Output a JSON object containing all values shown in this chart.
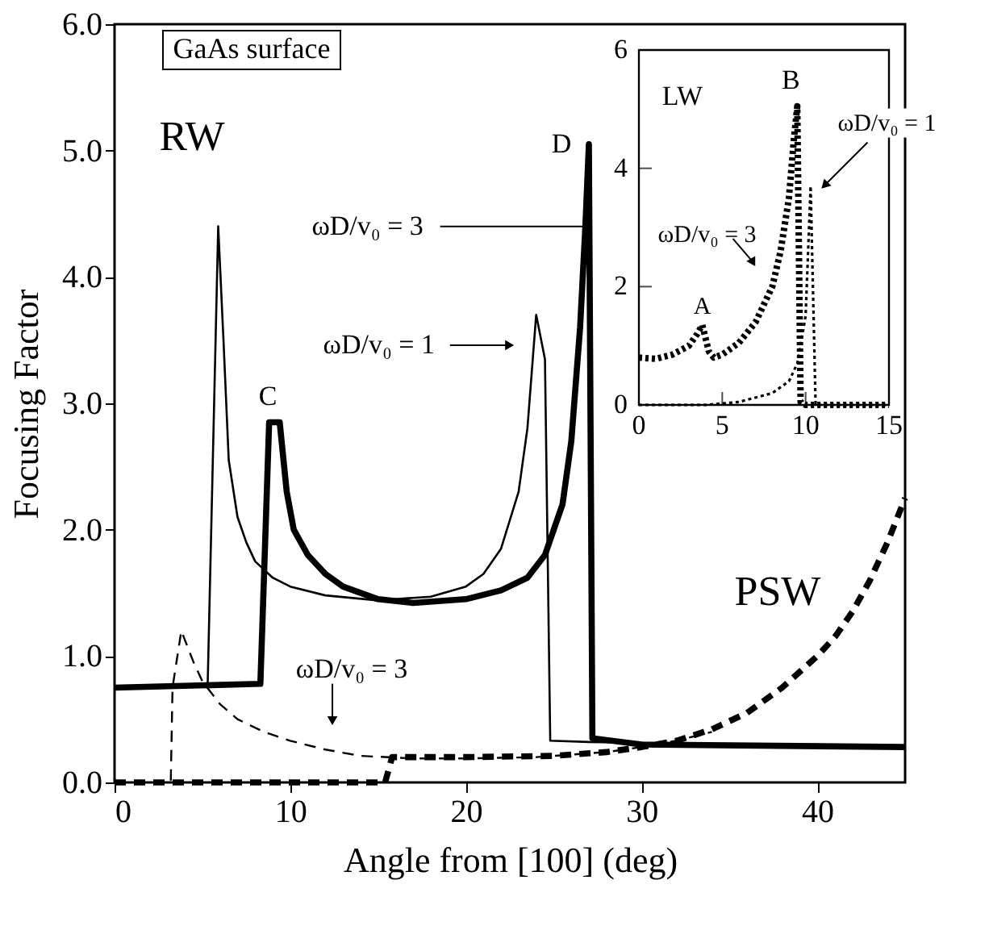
{
  "chart_data": [
    {
      "type": "line",
      "xlabel": "Angle from [100] (deg)",
      "ylabel": "Focusing Factor",
      "xlim": [
        0,
        45
      ],
      "ylim": [
        0,
        6
      ],
      "xticks": [
        0,
        10,
        20,
        30,
        40
      ],
      "yticks": [
        {
          "value": 0,
          "label": "0.0"
        },
        {
          "value": 1,
          "label": "1.0"
        },
        {
          "value": 2,
          "label": "2.0"
        },
        {
          "value": 3,
          "label": "3.0"
        },
        {
          "value": 4,
          "label": "4.0"
        },
        {
          "value": 5,
          "label": "5.0"
        },
        {
          "value": 6,
          "label": "6.0"
        }
      ],
      "series": [
        {
          "color": "#000000",
          "line_style": "solid",
          "x": [
            0,
            5.3,
            5.9,
            6.2,
            6.5,
            7,
            7.5,
            8,
            9,
            10,
            12,
            15,
            18,
            20,
            21,
            22,
            23,
            23.5,
            24,
            24.5,
            24.8,
            27,
            35,
            45
          ],
          "values": [
            0.75,
            0.77,
            4.4,
            3.5,
            2.55,
            2.1,
            1.9,
            1.75,
            1.62,
            1.55,
            1.48,
            1.44,
            1.47,
            1.55,
            1.65,
            1.85,
            2.3,
            2.8,
            3.7,
            3.35,
            0.33,
            0.32,
            0.3,
            0.28
          ]
        },
        {
          "color": "#000000",
          "line_style": "solid",
          "x": [
            0,
            8.3,
            8.5,
            8.8,
            9.4,
            9.8,
            10.2,
            11,
            12,
            13,
            15,
            17,
            20,
            22,
            23.5,
            24.5,
            25.5,
            26,
            26.5,
            26.8,
            27.0,
            27.2,
            30,
            45
          ],
          "values": [
            0.75,
            0.78,
            1.6,
            2.85,
            2.85,
            2.3,
            2.0,
            1.8,
            1.65,
            1.55,
            1.45,
            1.42,
            1.45,
            1.52,
            1.62,
            1.8,
            2.2,
            2.7,
            3.6,
            4.4,
            5.05,
            0.35,
            0.3,
            0.28
          ]
        },
        {
          "color": "#000000",
          "line_style": "dashed",
          "x": [
            0,
            3.2,
            3.3,
            3.8,
            4.5,
            5,
            6,
            7,
            8.5,
            10,
            12,
            14,
            17,
            20,
            24,
            28,
            30,
            32,
            34
          ],
          "values": [
            0,
            0,
            0.75,
            1.2,
            0.95,
            0.8,
            0.62,
            0.5,
            0.4,
            0.33,
            0.26,
            0.21,
            0.19,
            0.19,
            0.2,
            0.24,
            0.28,
            0.33,
            0.4
          ]
        },
        {
          "color": "#000000",
          "line_style": "dashed",
          "x": [
            0,
            15.4,
            15.8,
            20,
            25,
            28,
            30,
            32,
            34,
            36,
            38,
            40,
            41,
            42,
            43,
            44,
            45
          ],
          "values": [
            0,
            0,
            0.2,
            0.2,
            0.21,
            0.24,
            0.28,
            0.33,
            0.42,
            0.55,
            0.75,
            1.0,
            1.15,
            1.35,
            1.6,
            1.9,
            2.25
          ]
        }
      ],
      "annotations": [
        "GaAs surface",
        "RW",
        "PSW",
        {
          "text": "C",
          "x": 9.1,
          "y": 2.85
        },
        {
          "text": "D",
          "x": 27.0,
          "y": 5.05
        },
        {
          "text": "ωD/v₀ = 3",
          "x": 26.8,
          "y": 4.4
        },
        {
          "text": "ωD/v₀ = 1",
          "x": 22.4,
          "y": 3.46
        },
        {
          "text": "ωD/v₀ = 3",
          "x": 12.4,
          "y": 0.5
        }
      ]
    },
    {
      "type": "line",
      "xlim": [
        0,
        15
      ],
      "ylim": [
        0,
        6
      ],
      "xticks": [
        0,
        5,
        10,
        15
      ],
      "yticks": [
        0,
        2,
        4,
        6
      ],
      "series": [
        {
          "color": "#000000",
          "line_style": "dotted",
          "x": [
            0,
            1,
            2,
            3,
            3.5,
            3.8,
            4.2,
            4.5,
            5,
            6,
            7,
            8,
            8.5,
            9,
            9.3,
            9.5,
            9.7,
            10,
            15
          ],
          "values": [
            0.8,
            0.78,
            0.85,
            1.0,
            1.2,
            1.35,
            0.9,
            0.8,
            0.85,
            1.05,
            1.4,
            2.0,
            2.6,
            3.5,
            4.5,
            5.05,
            0.05,
            0,
            0
          ]
        },
        {
          "color": "#000000",
          "line_style": "dotted",
          "x": [
            0,
            4,
            6,
            8,
            9,
            9.5,
            10,
            10.3,
            10.6,
            15
          ],
          "values": [
            0,
            0,
            0.05,
            0.2,
            0.4,
            0.7,
            1.5,
            3.7,
            0,
            0
          ]
        }
      ],
      "annotations": [
        "LW",
        {
          "text": "A",
          "x": 3.8,
          "y": 1.35
        },
        {
          "text": "B",
          "x": 9.5,
          "y": 5.05
        },
        {
          "text": "ωD/v₀ = 3",
          "x": 6.8,
          "y": 2.43
        },
        {
          "text": "ωD/v₀ = 1",
          "x": 11.2,
          "y": 3.73
        }
      ]
    }
  ]
}
